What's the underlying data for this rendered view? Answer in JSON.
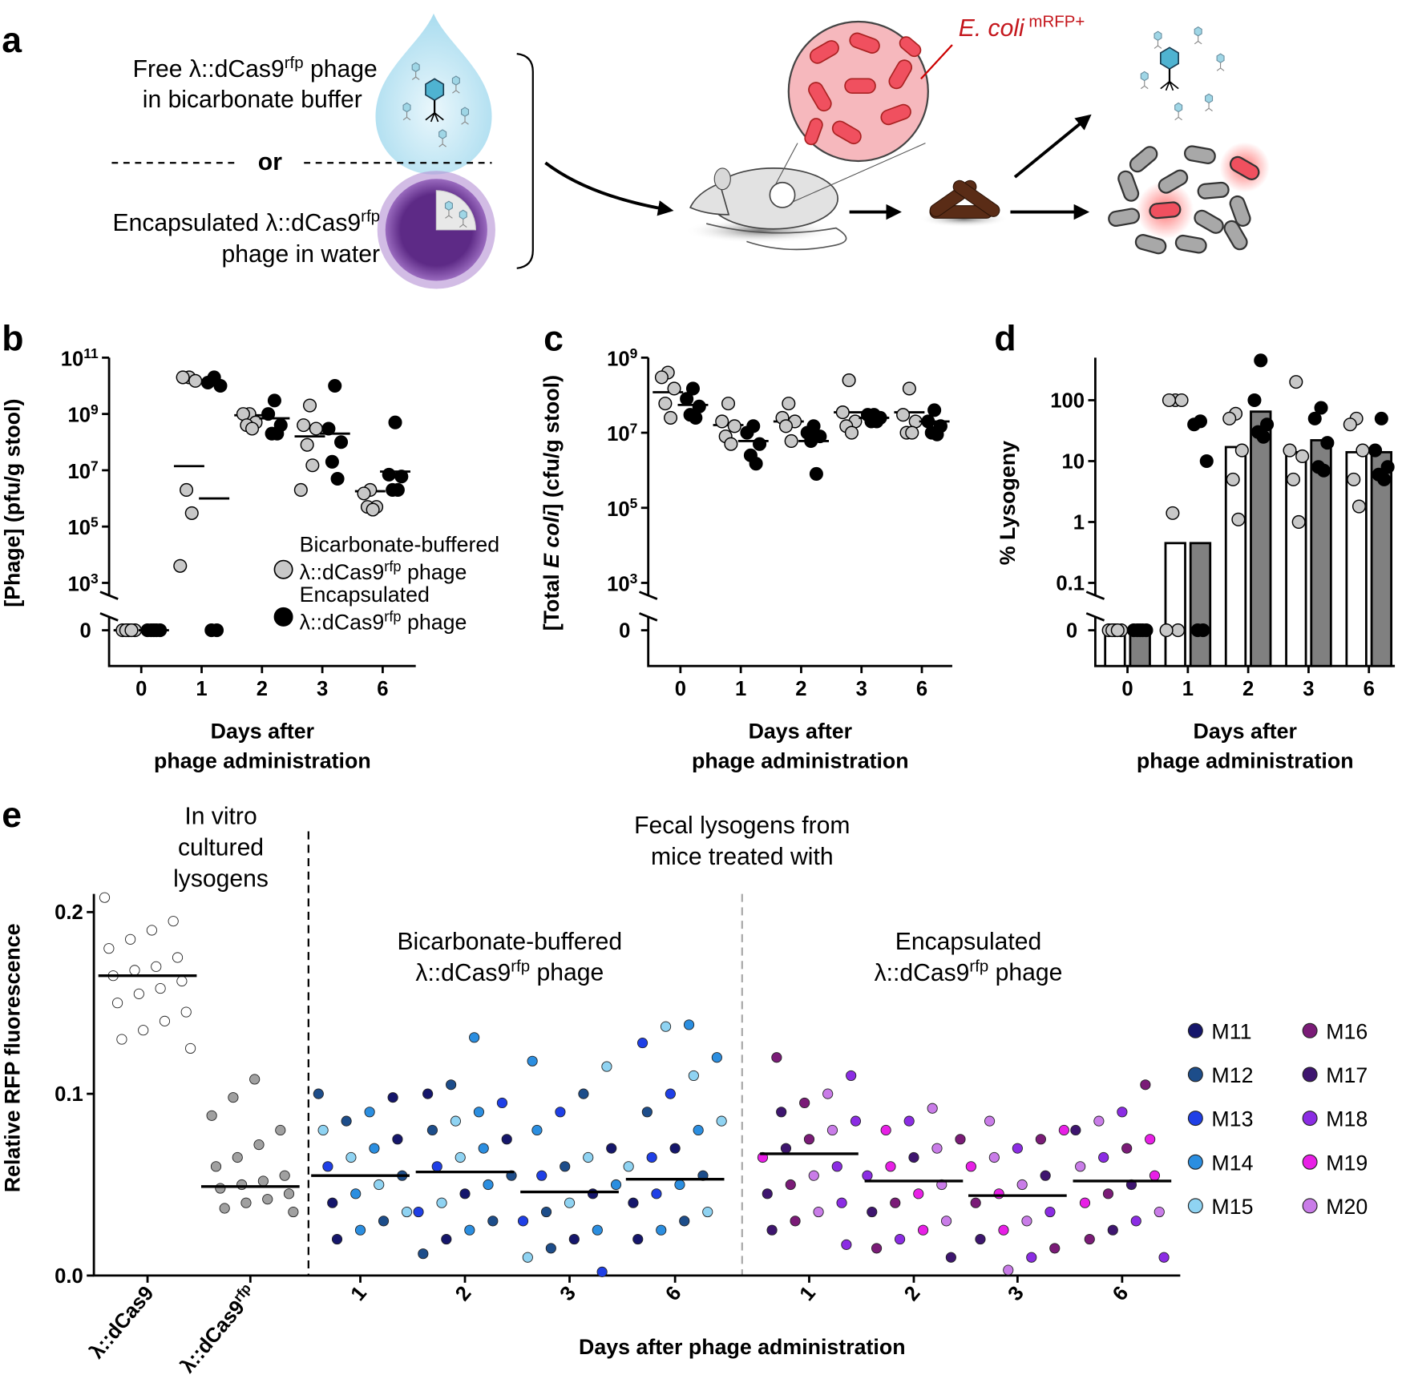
{
  "panel_labels": [
    "a",
    "b",
    "c",
    "d",
    "e"
  ],
  "diagram": {
    "free_line1": {
      "pre": "Free λ::dCas9",
      "sup": "rfp",
      "post": " phage"
    },
    "free_line2": "in bicarbonate buffer",
    "or": "or",
    "enc_line1": {
      "pre": "Encapsulated λ::dCas9",
      "sup": "rfp"
    },
    "enc_line2": "phage in water",
    "ecoli": {
      "it": "E. coli",
      "sup": " mRFP+"
    }
  },
  "chart_data": [
    {
      "type": "scatter",
      "log": true,
      "ylabel": "[Phage] (pfu/g stool)",
      "xlabel": [
        "Days after",
        "phage administration"
      ],
      "categories": [
        "0",
        "1",
        "2",
        "3",
        "6"
      ],
      "ylim": [
        1000,
        100000000000.0
      ],
      "yticks": [
        {
          "value": 100000000000.0,
          "label": "10",
          "sup": "11"
        },
        {
          "value": 1000000000.0,
          "label": "10",
          "sup": "9"
        },
        {
          "value": 10000000.0,
          "label": "10",
          "sup": "7"
        },
        {
          "value": 100000.0,
          "label": "10",
          "sup": "5"
        },
        {
          "value": 1000,
          "label": "10",
          "sup": "3"
        }
      ],
      "zero_tick": 0,
      "series": [
        {
          "name": {
            "pre": "Bicarbonate-buffered",
            "pre2": "λ::dCas9",
            "sup": "rfp",
            "post": " phage"
          },
          "color": "#c8c8c8",
          "values": [
            [
              0,
              0,
              0,
              0,
              0
            ],
            [
              20000000000.0,
              20000000000.0,
              15000000000.0,
              2000000.0,
              300000.0,
              4000
            ],
            [
              1000000000.0,
              1000000000.0,
              500000000.0,
              400000000.0,
              300000000.0
            ],
            [
              2000000000.0,
              400000000.0,
              300000000.0,
              80000000.0,
              15000000.0,
              2000000.0
            ],
            [
              2000000.0,
              1500000.0,
              500000.0,
              500000.0,
              400000.0
            ]
          ],
          "medians": [
            0,
            14000000.0,
            900000000.0,
            160000000.0,
            1800000.0
          ]
        },
        {
          "name": {
            "pre": "Encapsulated",
            "pre2": "λ::dCas9",
            "sup": "rfp",
            "post": " phage"
          },
          "color": "#000000",
          "values": [
            [
              0,
              0,
              0,
              0,
              0
            ],
            [
              20000000000.0,
              13000000000.0,
              10000000000.0,
              0,
              0
            ],
            [
              3000000000.0,
              1000000000.0,
              400000000.0,
              200000000.0,
              200000000.0
            ],
            [
              10000000000.0,
              300000000.0,
              100000000.0,
              20000000.0,
              5000000.0
            ],
            [
              500000000.0,
              7000000.0,
              6000000.0,
              2000000.0,
              2000000.0
            ]
          ],
          "medians": [
            0,
            1000000.0,
            700000000.0,
            200000000.0,
            9000000.0
          ]
        }
      ]
    },
    {
      "type": "scatter",
      "log": true,
      "ylabel": {
        "pre": "[Total ",
        "it": "E coli",
        "post": "] (cfu/g stool)"
      },
      "xlabel": [
        "Days after",
        "phage administration"
      ],
      "categories": [
        "0",
        "1",
        "2",
        "3",
        "6"
      ],
      "ylim": [
        1000,
        1000000000.0
      ],
      "yticks": [
        {
          "value": 1000000000.0,
          "label": "10",
          "sup": "9"
        },
        {
          "value": 10000000.0,
          "label": "10",
          "sup": "7"
        },
        {
          "value": 100000.0,
          "label": "10",
          "sup": "5"
        },
        {
          "value": 1000,
          "label": "10",
          "sup": "3"
        }
      ],
      "zero_tick": 0,
      "series": [
        {
          "color": "#c8c8c8",
          "values": [
            [
              400000000.0,
              300000000.0,
              150000000.0,
              60000000.0,
              25000000.0
            ],
            [
              60000000.0,
              20000000.0,
              15000000.0,
              8000000.0,
              5000000.0
            ],
            [
              60000000.0,
              25000000.0,
              20000000.0,
              15000000.0,
              6000000.0
            ],
            [
              250000000.0,
              35000000.0,
              20000000.0,
              15000000.0,
              10000000.0
            ],
            [
              150000000.0,
              30000000.0,
              20000000.0,
              10000000.0,
              10000000.0
            ]
          ],
          "medians": [
            120000000.0,
            16000000.0,
            20000000.0,
            35000000.0,
            35000000.0
          ]
        },
        {
          "color": "#000000",
          "values": [
            [
              150000000.0,
              80000000.0,
              50000000.0,
              30000000.0,
              25000000.0
            ],
            [
              15000000.0,
              10000000.0,
              5000000.0,
              2500000.0,
              1500000.0
            ],
            [
              15000000.0,
              10000000.0,
              8000000.0,
              6000000.0,
              800000.0
            ],
            [
              30000000.0,
              30000000.0,
              25000000.0,
              20000000.0,
              20000000.0
            ],
            [
              40000000.0,
              20000000.0,
              15000000.0,
              10000000.0,
              9000000.0
            ]
          ],
          "medians": [
            55000000.0,
            6000000.0,
            6000000.0,
            25000000.0,
            20000000.0
          ]
        }
      ]
    },
    {
      "type": "bar",
      "log": true,
      "ylabel": "% Lysogeny",
      "xlabel": [
        "Days after",
        "phage administration"
      ],
      "categories": [
        "0",
        "1",
        "2",
        "3",
        "6"
      ],
      "ylim": [
        0.1,
        500
      ],
      "yticks": [
        100,
        10,
        1,
        0.1
      ],
      "zero_tick": 0,
      "series": [
        {
          "color": "#ffffff",
          "point_color": "#c8c8c8",
          "bars": [
            0,
            0.45,
            17,
            14,
            14
          ],
          "values": [
            [
              0,
              0,
              0,
              0,
              0
            ],
            [
              100,
              100,
              100,
              1.4,
              0,
              0
            ],
            [
              60,
              50,
              15,
              5,
              1.1
            ],
            [
              200,
              15,
              12,
              5,
              1
            ],
            [
              50,
              40,
              15,
              5,
              1.8
            ]
          ]
        },
        {
          "color": "#808080",
          "point_color": "#000000",
          "bars": [
            0,
            0.45,
            65,
            22,
            14
          ],
          "values": [
            [
              0,
              0,
              0,
              0,
              0
            ],
            [
              45,
              40,
              10,
              0,
              0
            ],
            [
              450,
              100,
              40,
              30,
              25
            ],
            [
              75,
              50,
              20,
              8,
              7
            ],
            [
              50,
              15,
              8,
              6,
              5
            ]
          ]
        }
      ]
    },
    {
      "type": "strip",
      "ylabel": "Relative RFP fluorescence",
      "xlabel": "Days after phage administration",
      "ylim": [
        0,
        0.21
      ],
      "yticks": [
        {
          "value": 0,
          "label": "0.0"
        },
        0.1,
        0.2
      ],
      "sections": [
        {
          "lines": [
            "In vitro",
            "cultured",
            "lysogens"
          ]
        },
        {
          "lines": [
            "Fecal lysogens from",
            "mice treated with"
          ]
        },
        {
          "lines": [
            {
              "pre": "Bicarbonate-buffered"
            },
            {
              "pre": "λ::dCas9",
              "sup": "rfp",
              "post": " phage"
            }
          ]
        },
        {
          "lines": [
            {
              "pre": "Encapsulated"
            },
            {
              "pre": "λ::dCas9",
              "sup": "rfp",
              "post": " phage"
            }
          ]
        }
      ],
      "legend": [
        {
          "name": "M11",
          "color": "#15166b"
        },
        {
          "name": "M12",
          "color": "#1d4d8a"
        },
        {
          "name": "M13",
          "color": "#1f3fe6"
        },
        {
          "name": "M14",
          "color": "#2b8ee0"
        },
        {
          "name": "M15",
          "color": "#8fd3f2"
        },
        {
          "name": "M16",
          "color": "#7a1b77"
        },
        {
          "name": "M17",
          "color": "#3e156f"
        },
        {
          "name": "M18",
          "color": "#8b2ce3"
        },
        {
          "name": "M19",
          "color": "#e81fe6"
        },
        {
          "name": "M20",
          "color": "#c97ce8"
        }
      ],
      "groups": [
        {
          "label": {
            "pre": "λ::dCas9"
          },
          "color": "#ffffff",
          "median": 0.165,
          "values": [
            0.208,
            0.195,
            0.19,
            0.185,
            0.18,
            0.175,
            0.17,
            0.168,
            0.165,
            0.162,
            0.158,
            0.155,
            0.15,
            0.145,
            0.14,
            0.135,
            0.13,
            0.125
          ]
        },
        {
          "label": {
            "pre": "λ::dCas9",
            "sup": "rfp"
          },
          "color": "#a0a0a0",
          "median": 0.049,
          "values": [
            0.108,
            0.098,
            0.088,
            0.08,
            0.072,
            0.065,
            0.06,
            0.055,
            0.052,
            0.05,
            0.048,
            0.045,
            0.042,
            0.04,
            0.037,
            0.035
          ]
        },
        {
          "label": {
            "pre": "1"
          },
          "median": 0.055,
          "values": [
            0.1,
            0.098,
            0.09,
            0.085,
            0.08,
            0.075,
            0.07,
            0.065,
            0.06,
            0.055,
            0.05,
            0.045,
            0.04,
            0.035,
            0.03,
            0.025,
            0.02
          ],
          "mice": [
            1,
            0,
            3,
            1,
            4,
            0,
            3,
            4,
            2,
            1,
            4,
            3,
            0,
            4,
            1,
            3,
            0
          ]
        },
        {
          "label": {
            "pre": "2"
          },
          "median": 0.057,
          "values": [
            0.131,
            0.105,
            0.1,
            0.095,
            0.09,
            0.085,
            0.08,
            0.075,
            0.07,
            0.065,
            0.06,
            0.055,
            0.05,
            0.045,
            0.04,
            0.035,
            0.03,
            0.025,
            0.02,
            0.012
          ],
          "mice": [
            3,
            1,
            0,
            2,
            3,
            4,
            1,
            0,
            3,
            4,
            2,
            1,
            3,
            0,
            4,
            2,
            1,
            3,
            0,
            1
          ]
        },
        {
          "label": {
            "pre": "3"
          },
          "median": 0.046,
          "values": [
            0.118,
            0.115,
            0.1,
            0.09,
            0.08,
            0.07,
            0.065,
            0.06,
            0.055,
            0.05,
            0.045,
            0.04,
            0.035,
            0.03,
            0.025,
            0.02,
            0.015,
            0.01,
            0.002
          ],
          "mice": [
            3,
            4,
            1,
            2,
            3,
            0,
            4,
            1,
            2,
            3,
            0,
            4,
            1,
            2,
            3,
            0,
            1,
            4,
            2
          ]
        },
        {
          "label": {
            "pre": "6"
          },
          "median": 0.053,
          "values": [
            0.138,
            0.137,
            0.128,
            0.12,
            0.11,
            0.1,
            0.09,
            0.085,
            0.08,
            0.07,
            0.065,
            0.06,
            0.055,
            0.05,
            0.045,
            0.04,
            0.035,
            0.03,
            0.025,
            0.02
          ],
          "mice": [
            3,
            4,
            2,
            3,
            4,
            2,
            1,
            4,
            3,
            0,
            2,
            4,
            1,
            3,
            2,
            0,
            4,
            1,
            3,
            0
          ]
        },
        {
          "label": {
            "pre": "1"
          },
          "median": 0.067,
          "values": [
            0.12,
            0.11,
            0.1,
            0.095,
            0.09,
            0.085,
            0.08,
            0.075,
            0.07,
            0.065,
            0.06,
            0.055,
            0.05,
            0.045,
            0.04,
            0.035,
            0.03,
            0.025,
            0.017
          ],
          "mice": [
            5,
            7,
            9,
            5,
            6,
            7,
            9,
            5,
            6,
            8,
            7,
            9,
            5,
            6,
            7,
            9,
            5,
            6,
            7
          ]
        },
        {
          "label": {
            "pre": "2"
          },
          "median": 0.052,
          "values": [
            0.092,
            0.085,
            0.08,
            0.075,
            0.07,
            0.065,
            0.06,
            0.055,
            0.05,
            0.045,
            0.04,
            0.035,
            0.03,
            0.025,
            0.02,
            0.015,
            0.01
          ],
          "mice": [
            9,
            7,
            8,
            5,
            9,
            6,
            8,
            7,
            9,
            8,
            5,
            6,
            9,
            8,
            7,
            5,
            6
          ]
        },
        {
          "label": {
            "pre": "3"
          },
          "median": 0.044,
          "values": [
            0.085,
            0.08,
            0.075,
            0.07,
            0.065,
            0.06,
            0.055,
            0.05,
            0.045,
            0.04,
            0.035,
            0.03,
            0.025,
            0.02,
            0.015,
            0.01,
            0.003
          ],
          "mice": [
            9,
            8,
            5,
            7,
            9,
            8,
            6,
            9,
            8,
            5,
            7,
            9,
            8,
            6,
            5,
            7,
            9
          ]
        },
        {
          "label": {
            "pre": "6"
          },
          "median": 0.052,
          "values": [
            0.105,
            0.09,
            0.085,
            0.08,
            0.075,
            0.07,
            0.065,
            0.06,
            0.055,
            0.05,
            0.045,
            0.04,
            0.035,
            0.03,
            0.025,
            0.02,
            0.01
          ],
          "mice": [
            5,
            7,
            9,
            6,
            8,
            5,
            7,
            9,
            8,
            6,
            5,
            8,
            9,
            7,
            6,
            5,
            7
          ]
        }
      ]
    }
  ]
}
